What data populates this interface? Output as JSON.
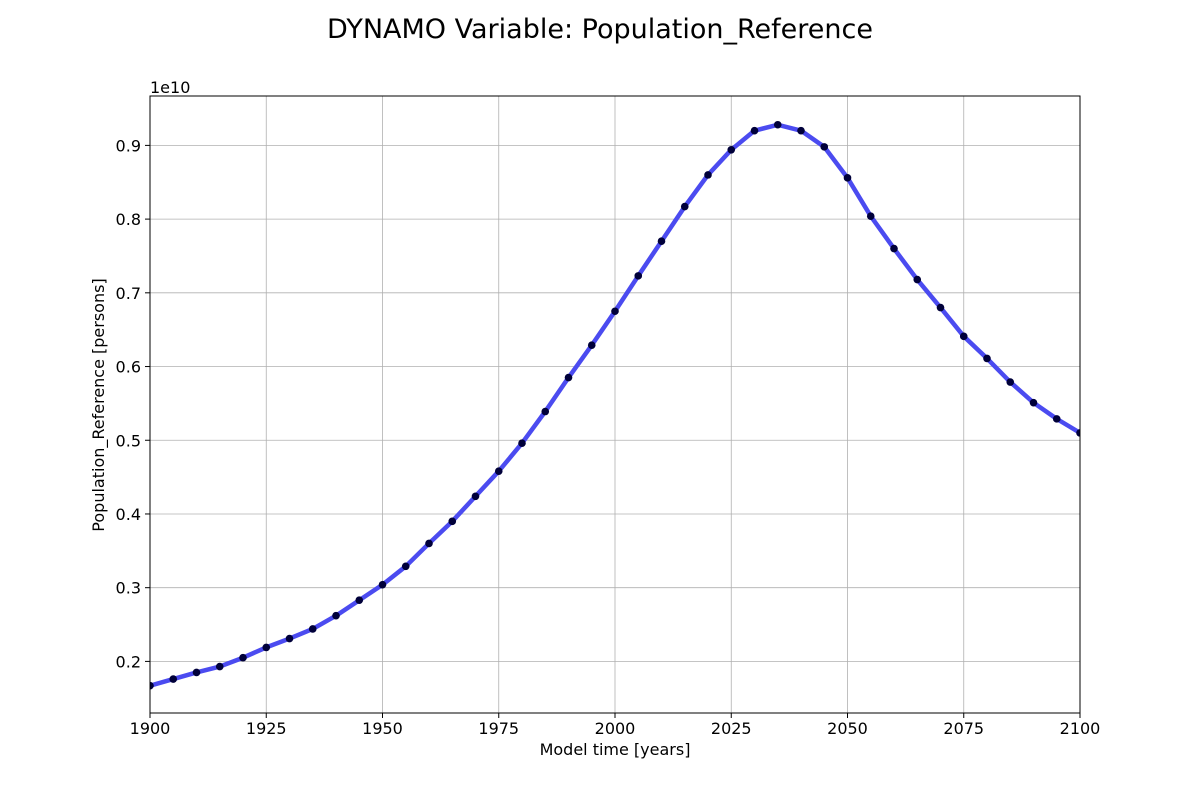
{
  "chart_data": {
    "type": "line",
    "title": "DYNAMO Variable: Population_Reference",
    "xlabel": "Model time [years]",
    "ylabel": "Population_Reference [persons]",
    "y_offset_label": "1e10",
    "xlim": [
      1900,
      2100
    ],
    "ylim": [
      0.13,
      0.967
    ],
    "x_ticks": [
      1900,
      1925,
      1950,
      1975,
      2000,
      2025,
      2050,
      2075,
      2100
    ],
    "y_ticks": [
      0.2,
      0.3,
      0.4,
      0.5,
      0.6,
      0.7,
      0.8,
      0.9
    ],
    "x_tick_labels": [
      "1900",
      "1925",
      "1950",
      "1975",
      "2000",
      "2025",
      "2050",
      "2075",
      "2100"
    ],
    "y_tick_labels": [
      "0.2",
      "0.3",
      "0.4",
      "0.5",
      "0.6",
      "0.7",
      "0.8",
      "0.9"
    ],
    "grid": true,
    "line_color": "#4b4bf0",
    "marker_color": "#00003a",
    "x": [
      1900,
      1905,
      1910,
      1915,
      1920,
      1925,
      1930,
      1935,
      1940,
      1945,
      1950,
      1955,
      1960,
      1965,
      1970,
      1975,
      1980,
      1985,
      1990,
      1995,
      2000,
      2005,
      2010,
      2015,
      2020,
      2025,
      2030,
      2035,
      2040,
      2045,
      2050,
      2055,
      2060,
      2065,
      2070,
      2075,
      2080,
      2085,
      2090,
      2095,
      2100
    ],
    "y": [
      0.167,
      0.176,
      0.185,
      0.193,
      0.205,
      0.219,
      0.231,
      0.244,
      0.262,
      0.283,
      0.304,
      0.329,
      0.36,
      0.39,
      0.424,
      0.458,
      0.496,
      0.539,
      0.585,
      0.629,
      0.675,
      0.723,
      0.77,
      0.817,
      0.86,
      0.894,
      0.92,
      0.928,
      0.92,
      0.898,
      0.856,
      0.804,
      0.76,
      0.718,
      0.68,
      0.641,
      0.611,
      0.579,
      0.551,
      0.529,
      0.51
    ]
  }
}
